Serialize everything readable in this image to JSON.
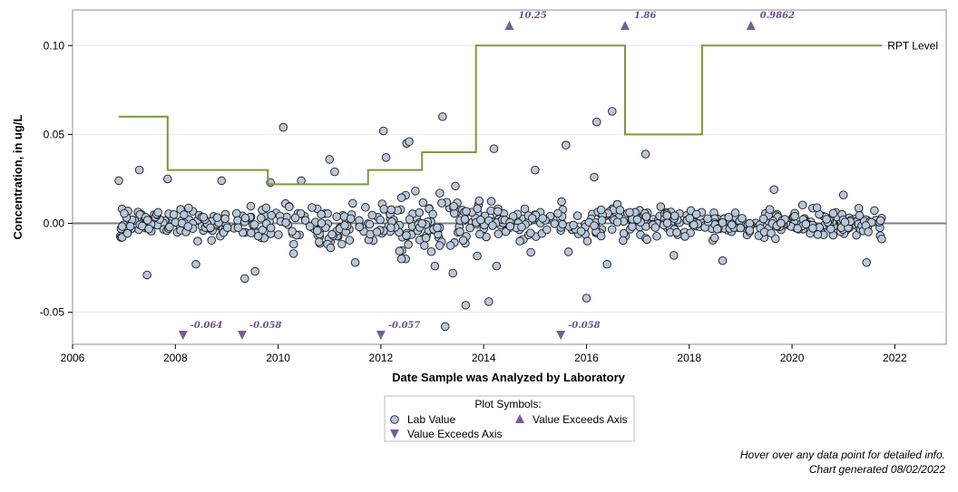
{
  "chart_data": {
    "type": "scatter",
    "xlabel": "Date Sample was Analyzed by Laboratory",
    "ylabel": "Concentration, in ug/L",
    "xlim": [
      2006,
      2023
    ],
    "ylim": [
      -0.068,
      0.12
    ],
    "x_ticks": [
      "2006",
      "2008",
      "2010",
      "2012",
      "2014",
      "2016",
      "2018",
      "2020",
      "2022"
    ],
    "x_tick_values": [
      2006,
      2008,
      2010,
      2012,
      2014,
      2016,
      2018,
      2020,
      2022
    ],
    "y_ticks": [
      "-0.05",
      "0.00",
      "0.05",
      "0.10"
    ],
    "y_tick_values": [
      -0.05,
      0.0,
      0.05,
      0.1
    ],
    "grid": "horizontal",
    "zero_line": true,
    "rpt_level": {
      "label": "RPT Level",
      "color": "#7a9a3a",
      "steps": [
        {
          "x0": 2006.9,
          "x1": 2007.85,
          "y": 0.06
        },
        {
          "x0": 2007.85,
          "x1": 2009.8,
          "y": 0.03
        },
        {
          "x0": 2009.8,
          "x1": 2011.75,
          "y": 0.022
        },
        {
          "x0": 2011.75,
          "x1": 2012.8,
          "y": 0.03
        },
        {
          "x0": 2012.8,
          "x1": 2013.85,
          "y": 0.04
        },
        {
          "x0": 2013.85,
          "x1": 2016.75,
          "y": 0.1
        },
        {
          "x0": 2016.75,
          "x1": 2018.25,
          "y": 0.05
        },
        {
          "x0": 2018.25,
          "x1": 2021.75,
          "y": 0.1
        }
      ]
    },
    "exceeds_above": [
      {
        "x": 2014.5,
        "label": "10.25"
      },
      {
        "x": 2016.75,
        "label": "1.86"
      },
      {
        "x": 2019.2,
        "label": "0.9862"
      }
    ],
    "exceeds_below": [
      {
        "x": 2008.15,
        "label": "-0.064"
      },
      {
        "x": 2009.3,
        "label": "-0.058"
      },
      {
        "x": 2012.0,
        "label": "-0.057"
      },
      {
        "x": 2015.5,
        "label": "-0.058"
      }
    ],
    "highlight_points": [
      [
        2006.9,
        0.024
      ],
      [
        2007.3,
        0.03
      ],
      [
        2007.45,
        -0.029
      ],
      [
        2007.85,
        0.025
      ],
      [
        2008.4,
        -0.023
      ],
      [
        2008.9,
        0.024
      ],
      [
        2009.35,
        -0.031
      ],
      [
        2009.55,
        -0.027
      ],
      [
        2009.85,
        0.023
      ],
      [
        2010.1,
        0.054
      ],
      [
        2010.3,
        -0.017
      ],
      [
        2010.45,
        0.024
      ],
      [
        2011.0,
        0.036
      ],
      [
        2011.1,
        0.029
      ],
      [
        2011.5,
        -0.022
      ],
      [
        2012.05,
        0.052
      ],
      [
        2012.1,
        0.037
      ],
      [
        2012.4,
        -0.02
      ],
      [
        2012.5,
        0.045
      ],
      [
        2012.55,
        0.046
      ],
      [
        2013.05,
        -0.024
      ],
      [
        2013.2,
        0.06
      ],
      [
        2013.25,
        -0.058
      ],
      [
        2013.4,
        -0.028
      ],
      [
        2013.45,
        0.021
      ],
      [
        2013.65,
        -0.046
      ],
      [
        2014.1,
        -0.044
      ],
      [
        2014.2,
        0.042
      ],
      [
        2014.25,
        -0.024
      ],
      [
        2015.0,
        0.03
      ],
      [
        2015.6,
        0.044
      ],
      [
        2015.65,
        -0.016
      ],
      [
        2016.0,
        -0.042
      ],
      [
        2016.15,
        0.026
      ],
      [
        2016.2,
        0.057
      ],
      [
        2016.4,
        -0.023
      ],
      [
        2016.5,
        0.063
      ],
      [
        2017.15,
        0.039
      ],
      [
        2017.7,
        -0.018
      ],
      [
        2018.65,
        -0.021
      ],
      [
        2019.65,
        0.019
      ],
      [
        2021.0,
        0.016
      ],
      [
        2021.45,
        -0.022
      ]
    ],
    "series": [
      {
        "name": "Lab Value",
        "marker": "circle",
        "color": "#b8c8dc",
        "edgecolor": "#1a1a1a",
        "x_range": [
          2006.9,
          2021.75
        ],
        "density_note": ""
      }
    ]
  },
  "legend": {
    "title": "Plot Symbols:",
    "items": [
      {
        "label": "Lab Value",
        "symbol": "circle"
      },
      {
        "label": "Value Exceeds Axis",
        "symbol": "triangle-up"
      },
      {
        "label": "Value Exceeds Axis",
        "symbol": "triangle-down"
      }
    ]
  },
  "footer": {
    "hover_note": "Hover over any data point for detailed info.",
    "generated": "Chart generated 08/02/2022"
  },
  "colors": {
    "triangle": "#7a5a9a",
    "rpt_line": "#7a9a3a",
    "zero_line": "#7f7f7f",
    "grid": "#e6e6e6",
    "point_fill": "#b8c8dc"
  }
}
